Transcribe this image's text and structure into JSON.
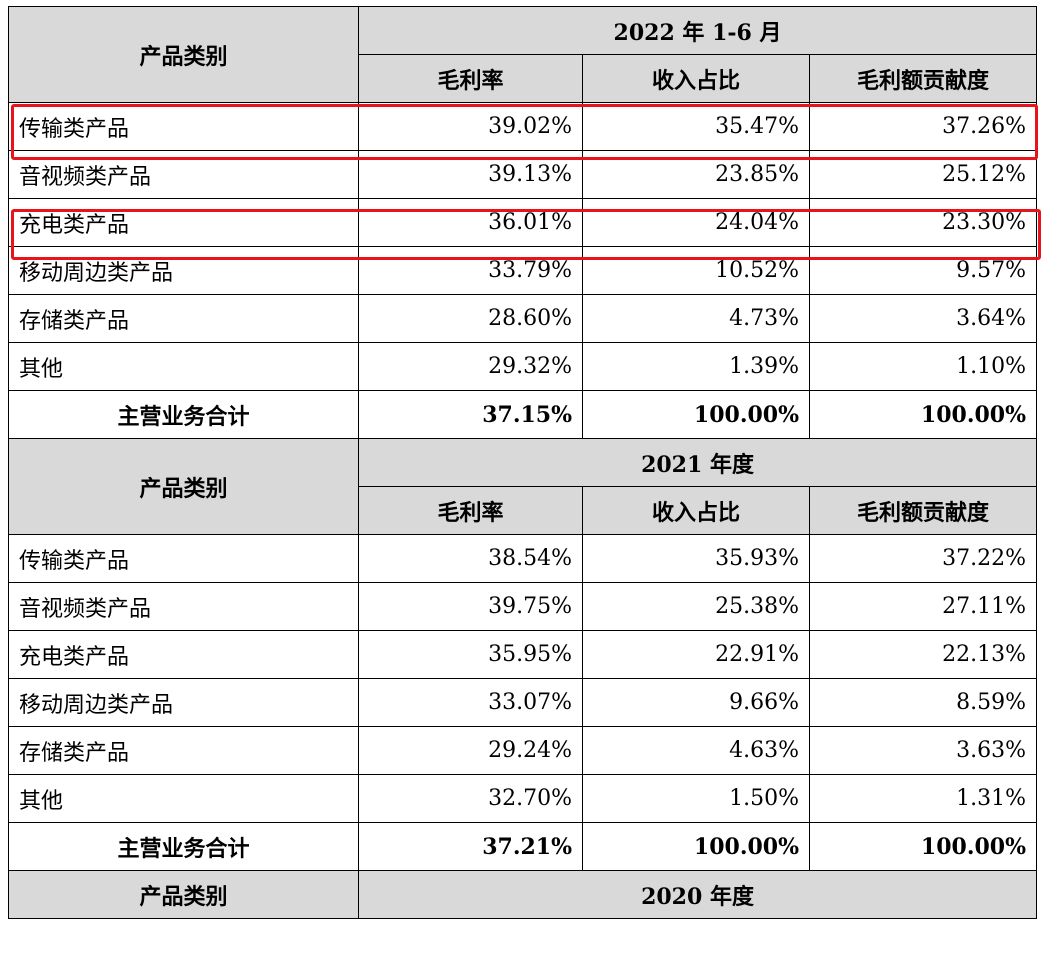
{
  "col_header": "产品类别",
  "metrics": [
    "毛利率",
    "收入占比",
    "毛利额贡献度"
  ],
  "total_label": "主营业务合计",
  "sections": [
    {
      "period": "2022 年 1-6 月",
      "rows": [
        {
          "name": "传输类产品",
          "gm": "39.02%",
          "rev": "35.47%",
          "contrib": "37.26%",
          "highlight": true
        },
        {
          "name": "音视频类产品",
          "gm": "39.13%",
          "rev": "23.85%",
          "contrib": "25.12%"
        },
        {
          "name": "充电类产品",
          "gm": "36.01%",
          "rev": "24.04%",
          "contrib": "23.30%",
          "highlight": true
        },
        {
          "name": "移动周边类产品",
          "gm": "33.79%",
          "rev": "10.52%",
          "contrib": "9.57%"
        },
        {
          "name": "存储类产品",
          "gm": "28.60%",
          "rev": "4.73%",
          "contrib": "3.64%"
        },
        {
          "name": "其他",
          "gm": "29.32%",
          "rev": "1.39%",
          "contrib": "1.10%"
        }
      ],
      "total": {
        "gm": "37.15%",
        "rev": "100.00%",
        "contrib": "100.00%"
      }
    },
    {
      "period": "2021 年度",
      "rows": [
        {
          "name": "传输类产品",
          "gm": "38.54%",
          "rev": "35.93%",
          "contrib": "37.22%"
        },
        {
          "name": "音视频类产品",
          "gm": "39.75%",
          "rev": "25.38%",
          "contrib": "27.11%"
        },
        {
          "name": "充电类产品",
          "gm": "35.95%",
          "rev": "22.91%",
          "contrib": "22.13%"
        },
        {
          "name": "移动周边类产品",
          "gm": "33.07%",
          "rev": "9.66%",
          "contrib": "8.59%"
        },
        {
          "name": "存储类产品",
          "gm": "29.24%",
          "rev": "4.63%",
          "contrib": "3.63%"
        },
        {
          "name": "其他",
          "gm": "32.70%",
          "rev": "1.50%",
          "contrib": "1.31%"
        }
      ],
      "total": {
        "gm": "37.21%",
        "rev": "100.00%",
        "contrib": "100.00%"
      }
    },
    {
      "period": "2020 年度"
    }
  ]
}
